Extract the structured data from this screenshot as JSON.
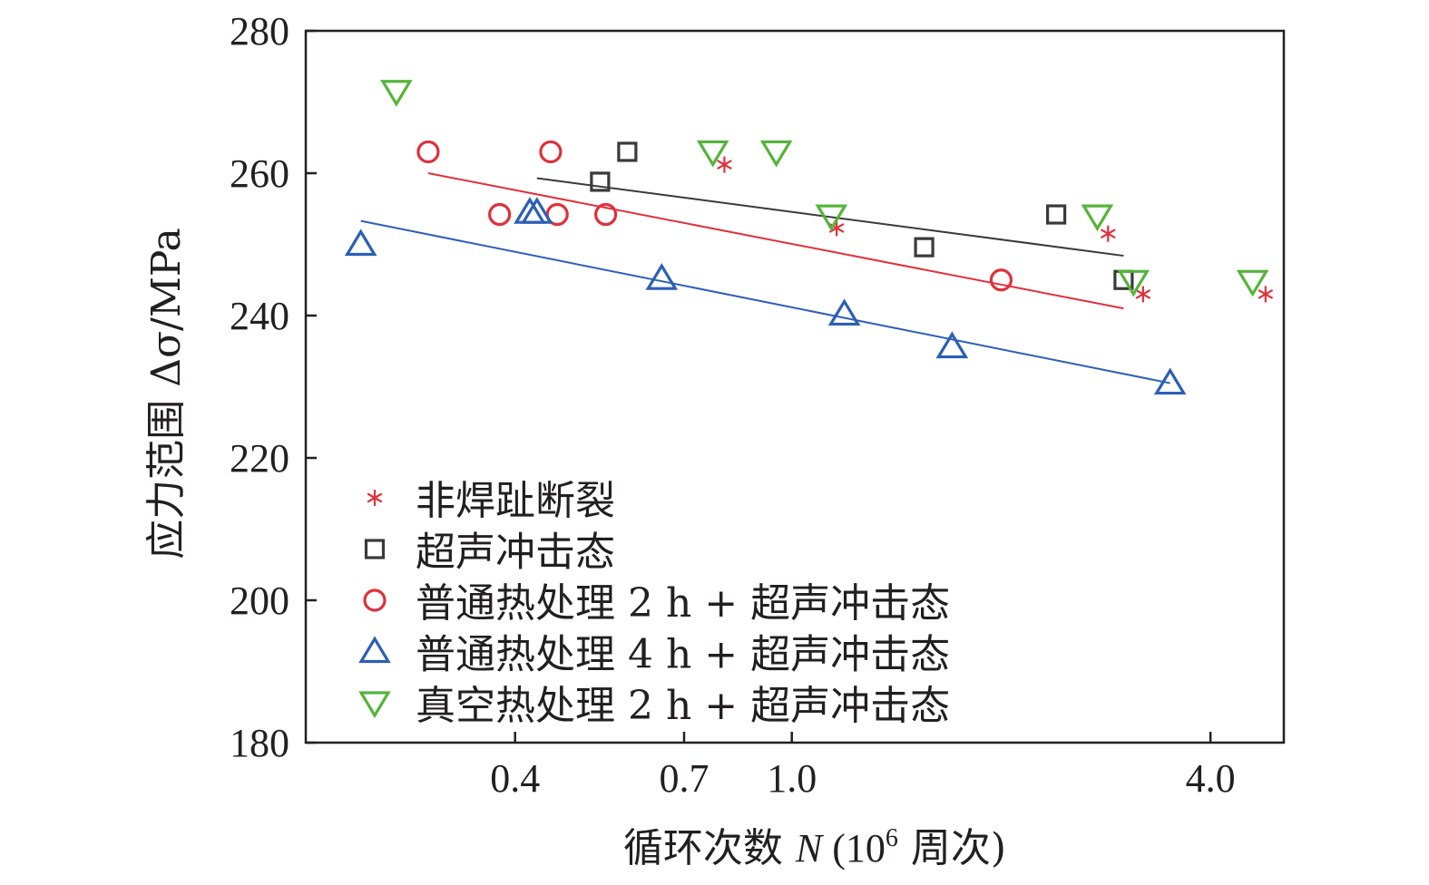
{
  "chart_data": {
    "type": "scatter",
    "title": "",
    "xlabel": "循环次数 N (10⁶ 周次)",
    "xlabel_prefix": "循环次数 ",
    "xlabel_var": "N",
    "xlabel_paren_open": " (10",
    "xlabel_exp": "6",
    "xlabel_paren_rest": " 周次)",
    "ylabel": "应力范围 Δσ/MPa",
    "xscale": "log",
    "xlim": [
      0.2,
      5.1
    ],
    "ylim": [
      180,
      280
    ],
    "yticks": [
      180,
      200,
      220,
      240,
      260,
      280
    ],
    "xticks": [
      0.4,
      0.7,
      1.0,
      4.0
    ],
    "xtick_labels": [
      "0.4",
      "0.7",
      "1.0",
      "4.0"
    ],
    "legend_position": "bottom-left",
    "series": [
      {
        "name": "非焊趾断裂",
        "marker": "asterisk",
        "color": "#e0303c",
        "x": [
          0.8,
          1.16,
          2.85,
          3.2,
          4.8
        ],
        "y": [
          261.2,
          252.3,
          251.5,
          243.0,
          243.0
        ]
      },
      {
        "name": "超声冲击态",
        "marker": "square",
        "color": "#3a3a3a",
        "x": [
          0.53,
          0.58,
          1.55,
          2.4,
          3.0
        ],
        "y": [
          258.8,
          263.0,
          249.6,
          254.2,
          245.0
        ],
        "fit": {
          "x": [
            0.43,
            3.0
          ],
          "y": [
            259.3,
            248.4
          ]
        }
      },
      {
        "name": "普通热处理 2 h + 超声冲击态",
        "marker": "circle",
        "color": "#e0303c",
        "x": [
          0.3,
          0.38,
          0.45,
          0.46,
          0.54,
          2.0
        ],
        "y": [
          263.0,
          254.2,
          263.0,
          254.2,
          254.2,
          245.0
        ],
        "fit": {
          "x": [
            0.3,
            3.0
          ],
          "y": [
            260.0,
            241.0
          ]
        }
      },
      {
        "name": "普通热处理 4 h + 超声冲击态",
        "marker": "triangle-up",
        "color": "#2c5fb5",
        "x": [
          0.24,
          0.42,
          0.43,
          0.65,
          1.19,
          1.7,
          3.5
        ],
        "y": [
          250.0,
          254.5,
          254.5,
          245.2,
          240.2,
          235.6,
          230.5
        ],
        "fit": {
          "x": [
            0.24,
            3.5
          ],
          "y": [
            253.3,
            230.5
          ]
        }
      },
      {
        "name": "真空热处理 2 h + 超声冲击态",
        "marker": "triangle-down",
        "color": "#55b43a",
        "x": [
          0.27,
          0.77,
          0.95,
          1.14,
          2.75,
          3.1,
          4.6
        ],
        "y": [
          271.5,
          263.0,
          263.0,
          254.0,
          254.0,
          244.8,
          244.8
        ]
      }
    ]
  }
}
